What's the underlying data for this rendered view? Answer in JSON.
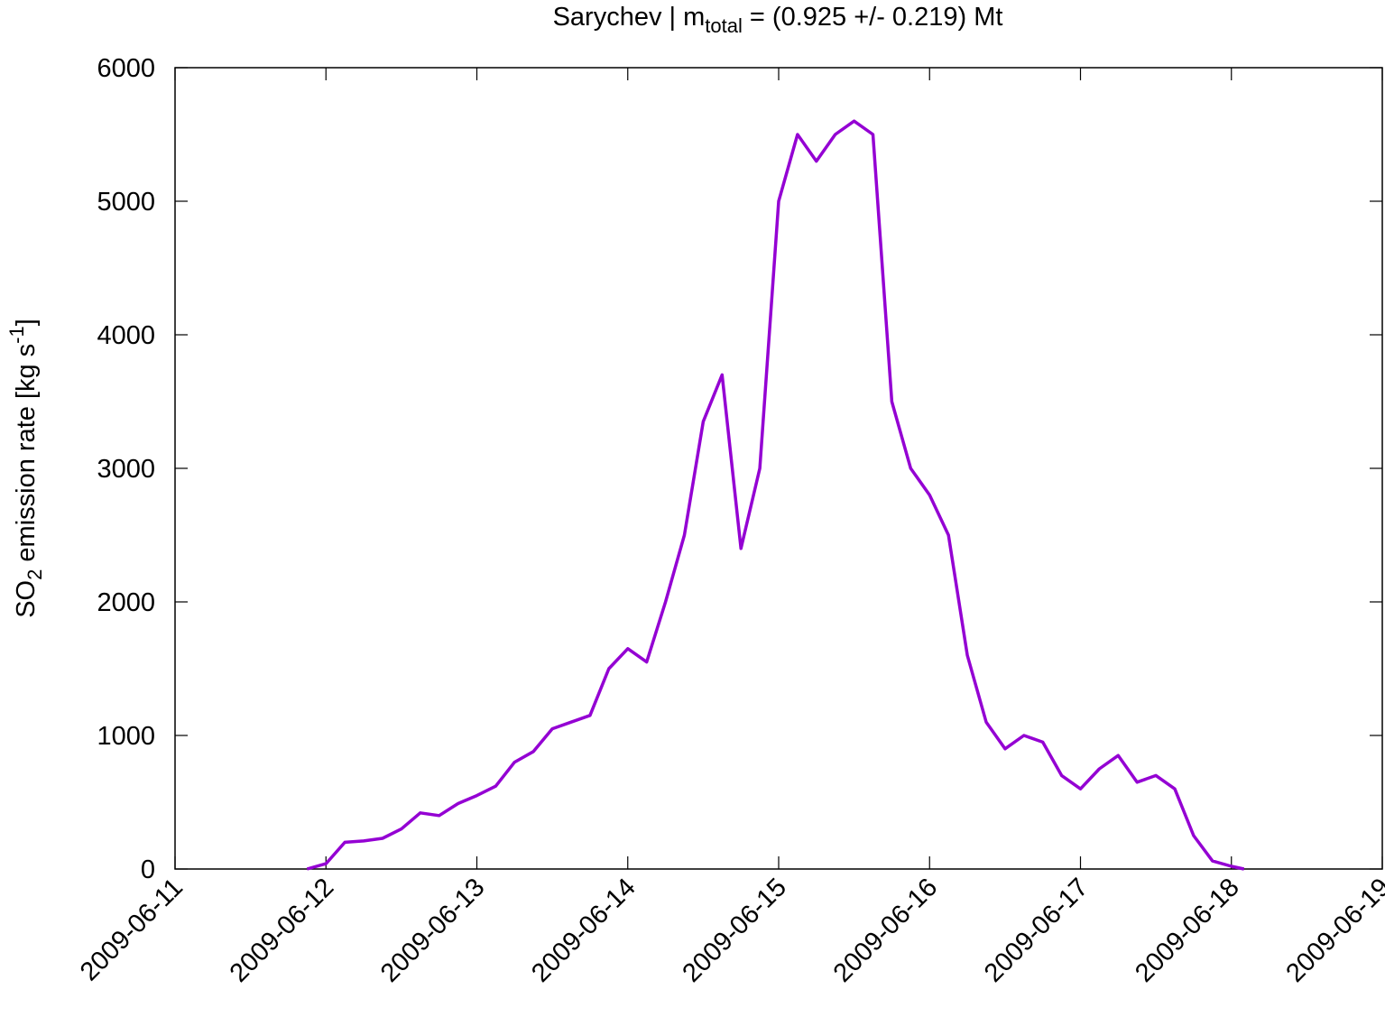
{
  "chart_data": {
    "type": "line",
    "title": [
      "Sarychev | m",
      "total",
      " = (0.925 +/- 0.219) Mt"
    ],
    "ylabel": [
      "SO",
      "2",
      " emission rate [kg s",
      "-1",
      "]"
    ],
    "x": [
      "2009-06-11 21:00",
      "2009-06-12 00:00",
      "2009-06-12 03:00",
      "2009-06-12 06:00",
      "2009-06-12 09:00",
      "2009-06-12 12:00",
      "2009-06-12 15:00",
      "2009-06-12 18:00",
      "2009-06-12 21:00",
      "2009-06-13 00:00",
      "2009-06-13 03:00",
      "2009-06-13 06:00",
      "2009-06-13 09:00",
      "2009-06-13 12:00",
      "2009-06-13 15:00",
      "2009-06-13 18:00",
      "2009-06-13 21:00",
      "2009-06-14 00:00",
      "2009-06-14 03:00",
      "2009-06-14 06:00",
      "2009-06-14 09:00",
      "2009-06-14 12:00",
      "2009-06-14 15:00",
      "2009-06-14 18:00",
      "2009-06-14 21:00",
      "2009-06-15 00:00",
      "2009-06-15 03:00",
      "2009-06-15 06:00",
      "2009-06-15 09:00",
      "2009-06-15 12:00",
      "2009-06-15 15:00",
      "2009-06-15 18:00",
      "2009-06-15 21:00",
      "2009-06-16 00:00",
      "2009-06-16 03:00",
      "2009-06-16 06:00",
      "2009-06-16 09:00",
      "2009-06-16 12:00",
      "2009-06-16 15:00",
      "2009-06-16 18:00",
      "2009-06-16 21:00",
      "2009-06-17 00:00",
      "2009-06-17 03:00",
      "2009-06-17 06:00",
      "2009-06-17 09:00",
      "2009-06-17 12:00",
      "2009-06-17 15:00",
      "2009-06-17 18:00",
      "2009-06-17 21:00",
      "2009-06-18 00:00",
      "2009-06-18 02:00"
    ],
    "series": [
      {
        "name": "SO2 emission rate",
        "color": "#9400d3",
        "values": [
          0,
          40,
          200,
          210,
          230,
          300,
          420,
          400,
          490,
          550,
          620,
          800,
          880,
          1050,
          1100,
          1150,
          1500,
          1650,
          1550,
          2000,
          2500,
          3350,
          3700,
          2400,
          3000,
          5000,
          5500,
          5300,
          5500,
          5600,
          5500,
          3500,
          3000,
          2800,
          2500,
          1600,
          1100,
          900,
          1000,
          950,
          700,
          600,
          750,
          850,
          650,
          700,
          600,
          250,
          60,
          20,
          0
        ]
      }
    ],
    "xlim": [
      "2009-06-11",
      "2009-06-19"
    ],
    "xticks": [
      "2009-06-11",
      "2009-06-12",
      "2009-06-13",
      "2009-06-14",
      "2009-06-15",
      "2009-06-16",
      "2009-06-17",
      "2009-06-18",
      "2009-06-19"
    ],
    "ylim": [
      0,
      6000
    ],
    "yticks": [
      0,
      1000,
      2000,
      3000,
      4000,
      5000,
      6000
    ],
    "grid": false
  }
}
